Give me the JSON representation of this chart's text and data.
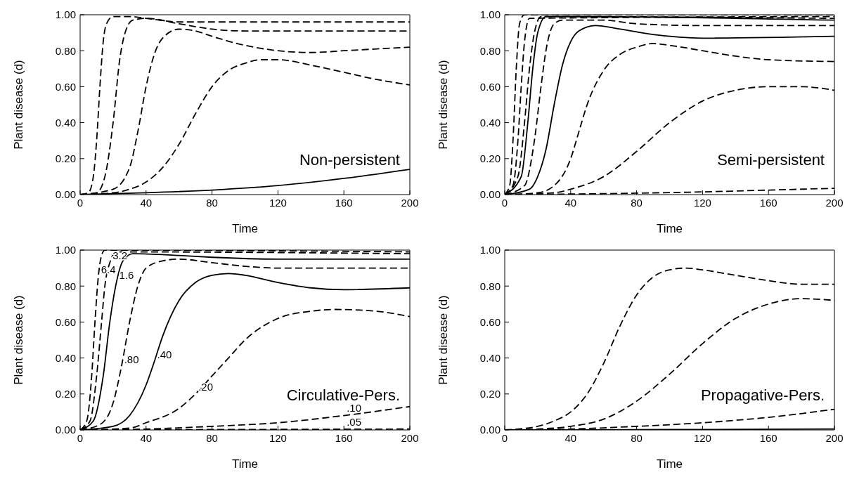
{
  "chart_data": [
    {
      "type": "line",
      "title": "Non-persistent",
      "xlabel": "Time",
      "ylabel": "Plant disease (d)",
      "xlim": [
        0,
        200
      ],
      "xticks": [
        0,
        40,
        80,
        120,
        160,
        200
      ],
      "ylim": [
        0,
        1
      ],
      "yticks": [
        {
          "value": 0,
          "label": "0.00"
        },
        {
          "value": 0.2,
          "label": "0.20"
        },
        {
          "value": 0.4,
          "label": "0.40"
        },
        {
          "value": 0.6,
          "label": "0.60"
        },
        {
          "value": 0.8,
          "label": "0.80"
        },
        {
          "value": 1,
          "label": "1.00"
        }
      ],
      "grid": false,
      "legend": false,
      "marker": "none",
      "series": [
        {
          "color": "#000000",
          "line_style": "dashed",
          "x": [
            0,
            5,
            8,
            10,
            12,
            14,
            16,
            20,
            30,
            40,
            60,
            80,
            120,
            160,
            200
          ],
          "values": [
            0,
            0.01,
            0.1,
            0.3,
            0.6,
            0.85,
            0.95,
            0.99,
            0.99,
            0.98,
            0.96,
            0.96,
            0.96,
            0.96,
            0.96
          ]
        },
        {
          "color": "#000000",
          "line_style": "dashed",
          "x": [
            0,
            10,
            15,
            20,
            24,
            28,
            32,
            40,
            60,
            80,
            100,
            200
          ],
          "values": [
            0,
            0.01,
            0.1,
            0.4,
            0.75,
            0.92,
            0.97,
            0.98,
            0.95,
            0.92,
            0.91,
            0.91
          ]
        },
        {
          "color": "#000000",
          "line_style": "dashed",
          "x": [
            0,
            20,
            30,
            35,
            40,
            45,
            50,
            60,
            70,
            80,
            100,
            120,
            140,
            160,
            180,
            200
          ],
          "values": [
            0,
            0.03,
            0.15,
            0.35,
            0.6,
            0.78,
            0.87,
            0.92,
            0.91,
            0.88,
            0.83,
            0.8,
            0.79,
            0.8,
            0.81,
            0.82
          ]
        },
        {
          "color": "#000000",
          "line_style": "dashed",
          "x": [
            0,
            20,
            30,
            40,
            50,
            60,
            70,
            80,
            90,
            100,
            110,
            120,
            140,
            160,
            180,
            200
          ],
          "values": [
            0,
            0.01,
            0.03,
            0.07,
            0.15,
            0.28,
            0.45,
            0.6,
            0.69,
            0.73,
            0.75,
            0.75,
            0.72,
            0.68,
            0.64,
            0.61
          ]
        },
        {
          "color": "#000000",
          "line_style": "solid",
          "x": [
            0,
            40,
            80,
            120,
            160,
            200
          ],
          "values": [
            0,
            0.01,
            0.025,
            0.05,
            0.09,
            0.14
          ]
        }
      ]
    },
    {
      "type": "line",
      "title": "Semi-persistent",
      "xlabel": "Time",
      "ylabel": "Plant disease (d)",
      "xlim": [
        0,
        200
      ],
      "xticks": [
        0,
        40,
        80,
        120,
        160,
        200
      ],
      "ylim": [
        0,
        1
      ],
      "yticks": [
        {
          "value": 0,
          "label": "0.00"
        },
        {
          "value": 0.2,
          "label": "0.20"
        },
        {
          "value": 0.4,
          "label": "0.40"
        },
        {
          "value": 0.6,
          "label": "0.60"
        },
        {
          "value": 0.8,
          "label": "0.80"
        },
        {
          "value": 1,
          "label": "1.00"
        }
      ],
      "grid": false,
      "legend": false,
      "marker": "none",
      "series": [
        {
          "color": "#000000",
          "line_style": "dashed",
          "x": [
            0,
            3,
            5,
            7,
            9,
            12,
            200
          ],
          "values": [
            0,
            0.05,
            0.3,
            0.7,
            0.95,
            1,
            1
          ]
        },
        {
          "color": "#000000",
          "line_style": "dashed",
          "x": [
            0,
            5,
            8,
            10,
            12,
            15,
            200
          ],
          "values": [
            0,
            0.05,
            0.3,
            0.6,
            0.85,
            0.98,
            0.99
          ]
        },
        {
          "color": "#000000",
          "line_style": "dashed",
          "x": [
            0,
            8,
            12,
            15,
            18,
            22,
            200
          ],
          "values": [
            0,
            0.1,
            0.4,
            0.7,
            0.9,
            0.99,
            0.98
          ]
        },
        {
          "color": "#000000",
          "line_style": "solid",
          "x": [
            0,
            10,
            14,
            17,
            20,
            25,
            40,
            200
          ],
          "values": [
            0,
            0.1,
            0.4,
            0.7,
            0.9,
            0.99,
            0.99,
            0.97
          ]
        },
        {
          "color": "#000000",
          "line_style": "dashed",
          "x": [
            0,
            12,
            18,
            22,
            25,
            30,
            35,
            60,
            80,
            120,
            200
          ],
          "values": [
            0,
            0.05,
            0.3,
            0.6,
            0.8,
            0.95,
            0.97,
            0.97,
            0.95,
            0.94,
            0.94
          ]
        },
        {
          "color": "#000000",
          "line_style": "solid",
          "x": [
            0,
            15,
            20,
            25,
            30,
            35,
            40,
            45,
            55,
            70,
            90,
            120,
            200
          ],
          "values": [
            0,
            0.03,
            0.1,
            0.25,
            0.5,
            0.72,
            0.85,
            0.91,
            0.94,
            0.92,
            0.89,
            0.87,
            0.88
          ]
        },
        {
          "color": "#000000",
          "line_style": "dashed",
          "x": [
            0,
            20,
            30,
            40,
            45,
            50,
            60,
            70,
            80,
            90,
            100,
            120,
            140,
            160,
            200
          ],
          "values": [
            0,
            0.01,
            0.05,
            0.2,
            0.35,
            0.5,
            0.69,
            0.78,
            0.82,
            0.84,
            0.83,
            0.8,
            0.77,
            0.75,
            0.74
          ]
        },
        {
          "color": "#000000",
          "line_style": "dashed",
          "x": [
            0,
            30,
            40,
            60,
            80,
            100,
            120,
            140,
            160,
            180,
            200
          ],
          "values": [
            0,
            0.01,
            0.03,
            0.1,
            0.24,
            0.4,
            0.52,
            0.58,
            0.6,
            0.6,
            0.58
          ]
        },
        {
          "color": "#000000",
          "line_style": "dashed",
          "x": [
            0,
            40,
            80,
            120,
            160,
            200
          ],
          "values": [
            0,
            0.003,
            0.008,
            0.015,
            0.025,
            0.035
          ]
        }
      ]
    },
    {
      "type": "line",
      "title": "Circulative-Pers.",
      "xlabel": "Time",
      "ylabel": "Plant disease (d)",
      "xlim": [
        0,
        200
      ],
      "xticks": [
        0,
        40,
        80,
        120,
        160,
        200
      ],
      "ylim": [
        0,
        1
      ],
      "yticks": [
        {
          "value": 0,
          "label": "0.00"
        },
        {
          "value": 0.2,
          "label": "0.20"
        },
        {
          "value": 0.4,
          "label": "0.40"
        },
        {
          "value": 0.6,
          "label": "0.60"
        },
        {
          "value": 0.8,
          "label": "0.80"
        },
        {
          "value": 1,
          "label": "1.00"
        }
      ],
      "grid": false,
      "legend": false,
      "marker": "none",
      "annotations": [
        {
          "text": "6.4",
          "x": 11,
          "y": 0.85
        },
        {
          "text": "3.2",
          "x": 18,
          "y": 0.93
        },
        {
          "text": "1.6",
          "x": 22,
          "y": 0.82
        },
        {
          "text": ".80",
          "x": 25,
          "y": 0.35
        },
        {
          "text": ".40",
          "x": 45,
          "y": 0.38
        },
        {
          "text": ".20",
          "x": 70,
          "y": 0.2
        },
        {
          "text": ".10",
          "x": 160,
          "y": 0.08
        },
        {
          "text": ".05",
          "x": 160,
          "y": 0.004
        }
      ],
      "series": [
        {
          "color": "#000000",
          "line_style": "dashed",
          "x": [
            0,
            4,
            7,
            9,
            11,
            13,
            15,
            200
          ],
          "values": [
            0,
            0.05,
            0.3,
            0.6,
            0.85,
            0.97,
            1,
            0.99
          ]
        },
        {
          "color": "#000000",
          "line_style": "dashed",
          "x": [
            0,
            6,
            10,
            13,
            15,
            18,
            22,
            200
          ],
          "values": [
            0,
            0.05,
            0.3,
            0.6,
            0.8,
            0.93,
            0.99,
            0.98
          ]
        },
        {
          "color": "#000000",
          "line_style": "solid",
          "x": [
            0,
            8,
            14,
            18,
            22,
            26,
            32,
            60,
            80,
            120,
            200
          ],
          "values": [
            0,
            0.05,
            0.3,
            0.6,
            0.82,
            0.94,
            0.98,
            0.97,
            0.96,
            0.95,
            0.95
          ]
        },
        {
          "color": "#000000",
          "line_style": "dashed",
          "x": [
            0,
            12,
            20,
            25,
            30,
            35,
            40,
            50,
            60,
            80,
            100,
            120,
            200
          ],
          "values": [
            0,
            0.03,
            0.15,
            0.35,
            0.6,
            0.8,
            0.9,
            0.94,
            0.95,
            0.93,
            0.91,
            0.9,
            0.9
          ]
        },
        {
          "color": "#000000",
          "line_style": "solid",
          "x": [
            0,
            20,
            30,
            40,
            45,
            50,
            60,
            70,
            80,
            90,
            100,
            120,
            140,
            160,
            200
          ],
          "values": [
            0,
            0.02,
            0.08,
            0.25,
            0.38,
            0.52,
            0.72,
            0.82,
            0.86,
            0.87,
            0.86,
            0.82,
            0.79,
            0.78,
            0.79
          ]
        },
        {
          "color": "#000000",
          "line_style": "dashed",
          "x": [
            0,
            30,
            40,
            60,
            70,
            80,
            90,
            100,
            120,
            140,
            155,
            180,
            200
          ],
          "values": [
            0,
            0.01,
            0.04,
            0.12,
            0.2,
            0.3,
            0.4,
            0.5,
            0.62,
            0.66,
            0.67,
            0.66,
            0.63
          ]
        },
        {
          "color": "#000000",
          "line_style": "dashed",
          "x": [
            0,
            40,
            80,
            120,
            160,
            200
          ],
          "values": [
            0,
            0.005,
            0.02,
            0.04,
            0.08,
            0.13
          ]
        },
        {
          "color": "#000000",
          "line_style": "dashed",
          "x": [
            0,
            80,
            160,
            200
          ],
          "values": [
            0,
            0.002,
            0.004,
            0.005
          ]
        }
      ]
    },
    {
      "type": "line",
      "title": "Propagative-Pers.",
      "xlabel": "Time",
      "ylabel": "Plant disease (d)",
      "xlim": [
        0,
        200
      ],
      "xticks": [
        0,
        40,
        80,
        120,
        160,
        200
      ],
      "ylim": [
        0,
        1
      ],
      "yticks": [
        {
          "value": 0,
          "label": "0.00"
        },
        {
          "value": 0.2,
          "label": "0.20"
        },
        {
          "value": 0.4,
          "label": "0.40"
        },
        {
          "value": 0.6,
          "label": "0.60"
        },
        {
          "value": 0.8,
          "label": "0.80"
        },
        {
          "value": 1,
          "label": "1.00"
        }
      ],
      "grid": false,
      "legend": false,
      "marker": "none",
      "series": [
        {
          "color": "#000000",
          "line_style": "dashed",
          "x": [
            0,
            20,
            30,
            40,
            50,
            60,
            70,
            80,
            90,
            100,
            110,
            120,
            140,
            160,
            180,
            200
          ],
          "values": [
            0,
            0.02,
            0.05,
            0.1,
            0.2,
            0.37,
            0.58,
            0.75,
            0.85,
            0.89,
            0.9,
            0.89,
            0.86,
            0.83,
            0.81,
            0.81
          ]
        },
        {
          "color": "#000000",
          "line_style": "dashed",
          "x": [
            0,
            20,
            40,
            60,
            80,
            100,
            120,
            140,
            160,
            180,
            200
          ],
          "values": [
            0,
            0.005,
            0.02,
            0.06,
            0.16,
            0.31,
            0.48,
            0.62,
            0.7,
            0.73,
            0.72
          ]
        },
        {
          "color": "#000000",
          "line_style": "dashed",
          "x": [
            0,
            40,
            80,
            120,
            160,
            200
          ],
          "values": [
            0,
            0.005,
            0.02,
            0.04,
            0.07,
            0.115
          ]
        },
        {
          "color": "#000000",
          "line_style": "solid",
          "x": [
            0,
            100,
            200
          ],
          "values": [
            0,
            0.002,
            0.005
          ]
        }
      ]
    }
  ]
}
